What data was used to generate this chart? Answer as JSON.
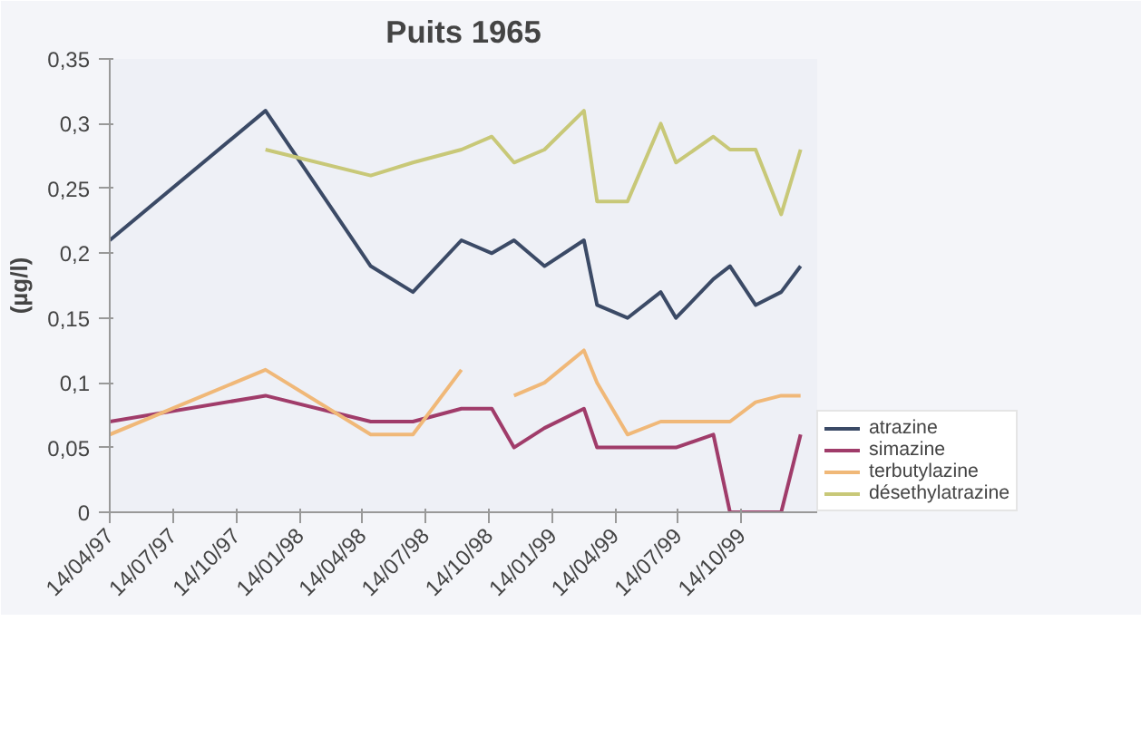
{
  "chart_data": {
    "type": "line",
    "title": "Puits 1965",
    "ylabel": "(µg/l)",
    "x": [
      "1997-04-14",
      "1997-11-25",
      "1998-04-26",
      "1998-06-26",
      "1998-09-04",
      "1998-10-18",
      "1998-11-19",
      "1999-01-02",
      "1999-02-28",
      "1999-03-19",
      "1999-05-02",
      "1999-06-19",
      "1999-07-11",
      "1999-09-03",
      "1999-09-27",
      "1999-11-03",
      "1999-12-10",
      "2000-01-07"
    ],
    "series": [
      {
        "name": "atrazine",
        "color": "#3b4a66",
        "values": [
          0.21,
          0.31,
          0.19,
          0.17,
          0.21,
          0.2,
          0.21,
          0.19,
          0.21,
          0.16,
          0.15,
          0.17,
          0.15,
          0.18,
          0.19,
          0.16,
          0.17,
          0.19
        ]
      },
      {
        "name": "simazine",
        "color": "#a03c6a",
        "values": [
          0.07,
          0.09,
          0.07,
          0.07,
          0.08,
          0.08,
          0.05,
          0.065,
          0.08,
          0.05,
          0.05,
          0.05,
          0.05,
          0.06,
          0,
          0,
          0,
          0.06
        ]
      },
      {
        "name": "terbutylazine",
        "color": "#f0b878",
        "values": [
          0.06,
          0.11,
          0.06,
          0.06,
          0.11,
          null,
          0.09,
          0.1,
          0.125,
          0.1,
          0.06,
          0.07,
          0.07,
          0.07,
          0.07,
          0.085,
          0.09,
          0.09
        ]
      },
      {
        "name": "désethylatrazine",
        "color": "#c8c878",
        "values": [
          null,
          0.28,
          0.26,
          0.27,
          0.28,
          0.29,
          0.27,
          0.28,
          0.31,
          0.24,
          0.24,
          0.3,
          0.27,
          0.29,
          0.28,
          0.28,
          0.23,
          0.28
        ]
      }
    ],
    "xlim": [
      "1997-04-14",
      "2000-01-31"
    ],
    "xticks": [
      {
        "value": "1997-04-14",
        "label": "14/04/97"
      },
      {
        "value": "1997-07-14",
        "label": "14/07/97"
      },
      {
        "value": "1997-10-14",
        "label": "14/10/97"
      },
      {
        "value": "1998-01-14",
        "label": "14/01/98"
      },
      {
        "value": "1998-04-14",
        "label": "14/04/98"
      },
      {
        "value": "1998-07-14",
        "label": "14/07/98"
      },
      {
        "value": "1998-10-14",
        "label": "14/10/98"
      },
      {
        "value": "1999-01-14",
        "label": "14/01/99"
      },
      {
        "value": "1999-04-14",
        "label": "14/04/99"
      },
      {
        "value": "1999-07-14",
        "label": "14/07/99"
      },
      {
        "value": "1999-10-14",
        "label": "14/10/99"
      }
    ],
    "ylim": [
      0,
      0.35
    ],
    "yticks": [
      {
        "value": 0,
        "label": "0"
      },
      {
        "value": 0.05,
        "label": "0,05"
      },
      {
        "value": 0.1,
        "label": "0,1"
      },
      {
        "value": 0.15,
        "label": "0,15"
      },
      {
        "value": 0.2,
        "label": "0,2"
      },
      {
        "value": 0.25,
        "label": "0,25"
      },
      {
        "value": 0.3,
        "label": "0,3"
      },
      {
        "value": 0.35,
        "label": "0,35"
      }
    ],
    "grid": false,
    "legend": "bottom right",
    "marker": "none",
    "line_style": "solid"
  }
}
